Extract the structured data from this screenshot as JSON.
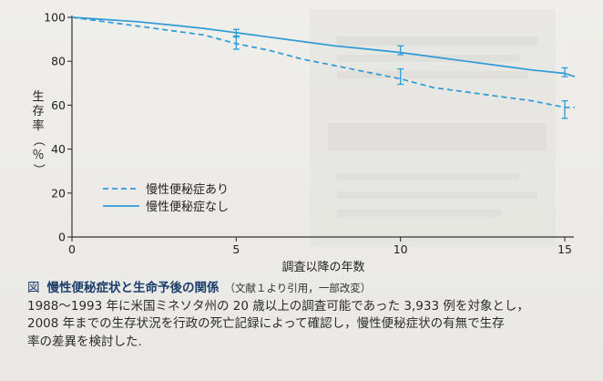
{
  "chart_data": {
    "type": "line",
    "x_ticks": [
      0,
      5,
      10,
      15
    ],
    "y_ticks": [
      0,
      20,
      40,
      60,
      80,
      100
    ],
    "xlim": [
      0,
      15.3
    ],
    "ylim": [
      0,
      100
    ],
    "xlabel": "調査以降の年数",
    "ylabel": "生存率（％）",
    "ylabel_chars": [
      "生",
      "存",
      "率",
      "（",
      "％",
      "）"
    ],
    "grid": false,
    "legend_position": "bottom-left",
    "series": [
      {
        "name": "慢性便秘症あり",
        "style": "dashed",
        "color": "#2e9ad6",
        "x": [
          0,
          1,
          2,
          3,
          4,
          5,
          6,
          7,
          8,
          9,
          10,
          11,
          12,
          13,
          14,
          15,
          15.3
        ],
        "y": [
          100,
          98,
          96,
          94,
          92,
          88,
          85,
          81,
          78,
          75,
          72,
          68,
          66,
          64,
          62,
          59,
          59
        ],
        "error_bars": [
          {
            "x": 5,
            "y": 88,
            "low": 85.5,
            "high": 91
          },
          {
            "x": 10,
            "y": 73,
            "low": 69.5,
            "high": 76.5
          },
          {
            "x": 15,
            "y": 58,
            "low": 54,
            "high": 62
          }
        ]
      },
      {
        "name": "慢性便秘症なし",
        "style": "solid",
        "color": "#2e9ad6",
        "x": [
          0,
          1,
          2,
          3,
          4,
          5,
          6,
          7,
          8,
          9,
          10,
          11,
          12,
          13,
          14,
          15,
          15.3
        ],
        "y": [
          100,
          99,
          98,
          96.5,
          95,
          93,
          91,
          89,
          87,
          85.5,
          84,
          82,
          80,
          78,
          76,
          74.5,
          73
        ],
        "error_bars": [
          {
            "x": 5,
            "y": 93,
            "low": 91.5,
            "high": 94.5
          },
          {
            "x": 10,
            "y": 85,
            "low": 83,
            "high": 87
          },
          {
            "x": 15,
            "y": 75,
            "low": 73,
            "high": 77
          }
        ]
      }
    ]
  },
  "caption": {
    "tag": "図",
    "title": "慢性便秘症状と生命予後の関係",
    "source": "（文献１より引用，一部改変）",
    "lines": [
      "1988～1993 年に米国ミネソタ州の 20 歳以上の調査可能であった 3,933 例を対象とし，",
      "2008 年までの生存状況を行政の死亡記録によって確認し，慢性便秘症状の有無で生存",
      "率の差異を検討した."
    ]
  },
  "colors": {
    "accent": "#2e9ad6",
    "axis": "#333333",
    "title": "#1d3e6b"
  }
}
